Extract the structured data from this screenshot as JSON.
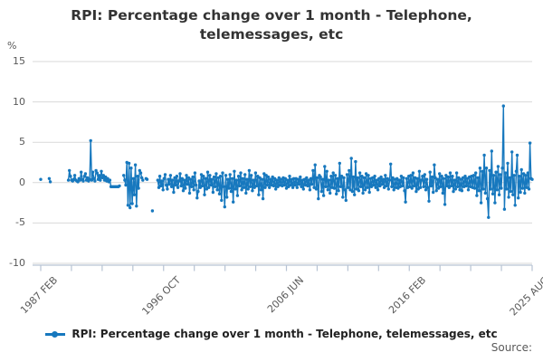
{
  "header": {
    "title_line1": "RPI: Percentage change over 1 month - Telephone,",
    "title_line2": "telemessages, etc",
    "y_axis_unit": "%"
  },
  "legend": {
    "label": "RPI: Percentage change over 1 month - Telephone, telemessages, etc"
  },
  "source": {
    "label": "Source:"
  },
  "colors": {
    "series": "#1778be",
    "gridline": "#d9d9d9",
    "axis": "#b7c3d3",
    "muted_text": "#595959",
    "title_text": "#333333"
  },
  "chart_data": {
    "type": "line",
    "title": "RPI: Percentage change over 1 month - Telephone, telemessages, etc",
    "xlabel": "",
    "ylabel": "%",
    "ylim": [
      -10,
      15
    ],
    "yticks": [
      15,
      10,
      5,
      0,
      -5,
      -10
    ],
    "grid": "horizontal",
    "legend_position": "bottom",
    "x_start": "1987 FEB",
    "x_end": "2025 AUG",
    "x_frequency": "monthly",
    "x_tick_labels": [
      "1987 FEB",
      "1996 OCT",
      "2006 JUN",
      "2016 FEB",
      "2025 AUG"
    ],
    "labeled_tick_indices": [
      0,
      4,
      8,
      12,
      16
    ],
    "tick_count": 17,
    "series": [
      {
        "name": "RPI: Percentage change over 1 month - Telephone, telemessages, etc",
        "marker": "circle",
        "values": [
          0.4,
          null,
          null,
          null,
          null,
          null,
          null,
          null,
          0.5,
          0.1,
          null,
          null,
          null,
          null,
          null,
          null,
          null,
          null,
          null,
          null,
          null,
          null,
          null,
          null,
          null,
          null,
          0.3,
          1.5,
          0.8,
          0.3,
          0.2,
          0.4,
          0.9,
          0.3,
          0.2,
          0.1,
          0.5,
          0.3,
          1.3,
          0.4,
          0.2,
          0.8,
          1.1,
          0.3,
          0.6,
          0.2,
          0.4,
          5.2,
          0.3,
          1.3,
          0.5,
          0.2,
          1.5,
          1.2,
          0.4,
          0.9,
          0.3,
          1.4,
          0.6,
          0.9,
          0.3,
          0.7,
          0.2,
          0.5,
          0.1,
          0.3,
          -0.5,
          -0.5,
          -0.5,
          -0.5,
          -0.5,
          -0.5,
          -0.5,
          -0.5,
          -0.4,
          null,
          null,
          null,
          0.9,
          0.3,
          -0.3,
          2.5,
          -2.8,
          2.4,
          -3.1,
          1.8,
          -2.6,
          0.5,
          -1.5,
          2.2,
          -2.9,
          0.8,
          -0.7,
          1.5,
          1.2,
          0.6,
          0.3,
          null,
          null,
          0.5,
          0.4,
          null,
          null,
          null,
          null,
          -3.5,
          null,
          null,
          null,
          null,
          0.3,
          -0.6,
          0.8,
          -0.4,
          0.2,
          -0.9,
          0.5,
          1.0,
          -0.3,
          -0.8,
          0.4,
          -0.2,
          0.9,
          -0.5,
          0.3,
          -1.2,
          0.6,
          -0.3,
          0.8,
          -0.6,
          0.2,
          1.1,
          -0.4,
          0.5,
          -1.0,
          0.3,
          -0.7,
          0.9,
          -0.2,
          0.6,
          -1.3,
          0.4,
          -0.5,
          0.7,
          -0.9,
          1.2,
          -0.3,
          -1.9,
          -1.1,
          0.2,
          -0.6,
          1.0,
          -0.4,
          0.8,
          -1.5,
          0.5,
          -0.8,
          1.3,
          -0.6,
          0.9,
          -0.3,
          0.4,
          -1.2,
          0.7,
          -0.5,
          1.1,
          -0.9,
          0.6,
          -1.4,
          0.8,
          -2.2,
          1.2,
          -0.5,
          -3.0,
          0.9,
          -1.8,
          0.4,
          -0.7,
          1.0,
          -1.1,
          0.5,
          -2.4,
          1.4,
          -0.8,
          0.3,
          -1.6,
          0.8,
          -0.4,
          1.2,
          -0.9,
          0.5,
          -0.6,
          1.0,
          -1.3,
          0.4,
          -0.8,
          1.5,
          -0.5,
          0.9,
          -1.0,
          0.3,
          -0.6,
          1.2,
          -0.4,
          0.8,
          -1.5,
          0.6,
          -0.9,
          0.4,
          -2.0,
          1.1,
          -0.6,
          0.9,
          -0.3,
          0.7,
          -0.6,
          0.4,
          -0.3,
          0.7,
          -0.4,
          0.5,
          -0.8,
          0.3,
          -0.5,
          0.6,
          -0.3,
          0.4,
          -0.4,
          0.6,
          -0.3,
          0.5,
          -0.7,
          0.3,
          -0.5,
          0.8,
          -0.3,
          0.4,
          -0.6,
          0.5,
          -0.3,
          0.5,
          -0.6,
          0.4,
          -0.2,
          0.7,
          -0.5,
          0.3,
          -0.8,
          0.4,
          -0.3,
          0.6,
          -0.4,
          0.3,
          -0.9,
          0.5,
          -0.2,
          1.5,
          -0.6,
          2.2,
          -0.8,
          0.6,
          -2.0,
          0.9,
          0.7,
          -1.1,
          0.4,
          -1.6,
          2.0,
          -0.5,
          1.4,
          -0.9,
          0.3,
          -1.3,
          0.8,
          -0.6,
          1.2,
          -0.7,
          0.9,
          -1.4,
          0.5,
          -1.0,
          2.4,
          -0.5,
          0.8,
          -1.8,
          0.6,
          -0.9,
          -2.2,
          1.0,
          -0.6,
          1.5,
          -0.9,
          3.0,
          -1.1,
          0.7,
          -1.5,
          2.6,
          -0.8,
          0.6,
          -1.0,
          1.2,
          -0.5,
          0.8,
          -1.3,
          0.6,
          -0.9,
          1.1,
          -0.6,
          0.9,
          -1.2,
          0.5,
          -0.5,
          0.6,
          -0.3,
          0.8,
          -0.6,
          0.3,
          -0.9,
          0.5,
          -0.4,
          0.7,
          -0.2,
          0.4,
          -0.6,
          0.9,
          -0.4,
          0.5,
          -0.8,
          0.3,
          2.3,
          -0.5,
          0.6,
          -0.9,
          0.4,
          -0.6,
          0.5,
          -0.7,
          0.3,
          -0.5,
          0.8,
          -0.4,
          0.6,
          -1.0,
          -2.4,
          0.5,
          -0.6,
          0.8,
          -0.5,
          0.9,
          -0.7,
          1.2,
          -0.4,
          0.6,
          -1.1,
          0.5,
          -0.8,
          1.4,
          -0.6,
          0.3,
          0.8,
          -0.5,
          1.0,
          -0.9,
          0.4,
          -0.6,
          -2.3,
          1.3,
          -0.4,
          0.7,
          -1.2,
          2.2,
          0.6,
          -1.0,
          0.4,
          -0.7,
          1.1,
          -0.5,
          0.8,
          -1.3,
          0.5,
          -2.7,
          0.9,
          -0.4,
          0.7,
          -0.6,
          1.2,
          -0.4,
          0.8,
          -1.1,
          0.3,
          -0.8,
          1.2,
          -0.5,
          0.6,
          -0.9,
          0.4,
          -1.0,
          0.6,
          -0.5,
          0.8,
          -0.4,
          0.5,
          -0.9,
          0.7,
          -0.5,
          0.8,
          -0.6,
          0.9,
          -0.7,
          1.2,
          -1.6,
          0.6,
          -1.0,
          1.8,
          -2.5,
          1.4,
          -0.8,
          3.4,
          -1.3,
          1.8,
          -2.0,
          -4.3,
          1.5,
          -0.8,
          3.9,
          -1.4,
          0.9,
          -2.5,
          1.3,
          -0.9,
          2.0,
          -1.5,
          1.0,
          -0.7,
          1.8,
          9.5,
          -3.3,
          1.2,
          -0.8,
          2.4,
          -1.8,
          0.6,
          -1.1,
          3.8,
          -1.5,
          0.9,
          -2.8,
          1.4,
          3.4,
          -1.9,
          0.8,
          -1.2,
          1.6,
          -0.7,
          1.1,
          -1.3,
          0.9,
          -0.6,
          1.2,
          -0.8,
          4.9,
          0.5,
          0.4
        ]
      }
    ]
  }
}
